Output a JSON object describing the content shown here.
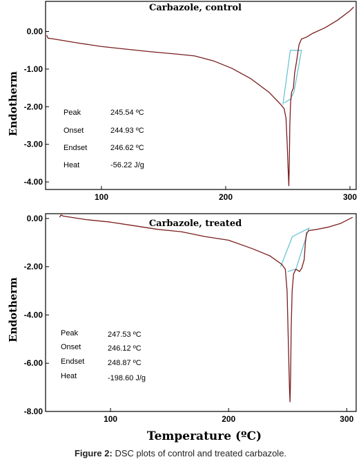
{
  "figure": {
    "xlabel": "Temperature (ºC)",
    "caption_bold": "Figure 2:",
    "caption_rest": " DSC plots of control and treated carbazole."
  },
  "colors": {
    "curve": "#7a1c1c",
    "baseline": "#5fc0d0",
    "axis": "#000000"
  },
  "chart_data": [
    {
      "type": "line",
      "title": "Carbazole, control",
      "ylabel": "Endotherm",
      "xlim": [
        55,
        305
      ],
      "ylim": [
        -4.2,
        0.8
      ],
      "xticks": [
        100,
        200,
        300
      ],
      "xtick_labels": [
        "100",
        "200",
        "300"
      ],
      "yticks": [
        0,
        -1,
        -2,
        -3,
        -4
      ],
      "ytick_labels": [
        "0.00",
        "-1.00",
        "-2.00",
        "-3.00",
        "-4.00"
      ],
      "series": [
        {
          "points": [
            [
              56,
              -0.1
            ],
            [
              57,
              -0.18
            ],
            [
              60,
              -0.19
            ],
            [
              80,
              -0.3
            ],
            [
              100,
              -0.4
            ],
            [
              120,
              -0.47
            ],
            [
              140,
              -0.54
            ],
            [
              160,
              -0.6
            ],
            [
              175,
              -0.65
            ],
            [
              190,
              -0.78
            ],
            [
              205,
              -0.98
            ],
            [
              220,
              -1.25
            ],
            [
              235,
              -1.62
            ],
            [
              244,
              -1.93
            ],
            [
              247,
              -2.05
            ],
            [
              248.5,
              -2.3
            ],
            [
              249.5,
              -3.0
            ],
            [
              250.3,
              -3.7
            ],
            [
              250.8,
              -4.1
            ],
            [
              251.2,
              -3.5
            ],
            [
              251.6,
              -2.5
            ],
            [
              252.2,
              -1.9
            ],
            [
              253,
              -1.62
            ],
            [
              254.5,
              -1.5
            ],
            [
              255.5,
              -1.1
            ],
            [
              257,
              -0.8
            ],
            [
              259,
              -0.35
            ],
            [
              261,
              -0.2
            ],
            [
              265,
              -0.15
            ],
            [
              270,
              -0.05
            ],
            [
              280,
              0.1
            ],
            [
              290,
              0.3
            ],
            [
              300,
              0.55
            ],
            [
              303,
              0.65
            ]
          ]
        }
      ],
      "baseline": [
        [
          246,
          -1.95
        ],
        [
          252,
          -0.5
        ],
        [
          261,
          -0.5
        ],
        [
          255,
          -1.6
        ],
        [
          252,
          -1.8
        ],
        [
          247,
          -1.9
        ]
      ],
      "annotations": [
        {
          "label": "Peak",
          "value": "245.54 ºC"
        },
        {
          "label": "Onset",
          "value": "244.93 ºC"
        },
        {
          "label": "Endset",
          "value": "246.62 ºC"
        },
        {
          "label": "Heat",
          "value": "-56.22 J/g"
        }
      ]
    },
    {
      "type": "line",
      "title": "Carbazole, treated",
      "ylabel": "Endotherm",
      "xlim": [
        45,
        308
      ],
      "ylim": [
        -8.0,
        0.2
      ],
      "xticks": [
        100,
        200,
        300
      ],
      "xtick_labels": [
        "100",
        "200",
        "300"
      ],
      "yticks": [
        0,
        -2,
        -4,
        -6,
        -8
      ],
      "ytick_labels": [
        "0.00",
        "-2.00",
        "-4.00",
        "-6.00",
        "-8.00"
      ],
      "series": [
        {
          "points": [
            [
              57,
              0.05
            ],
            [
              58,
              0.15
            ],
            [
              60,
              0.1
            ],
            [
              80,
              -0.05
            ],
            [
              100,
              -0.15
            ],
            [
              120,
              -0.3
            ],
            [
              140,
              -0.45
            ],
            [
              160,
              -0.55
            ],
            [
              180,
              -0.75
            ],
            [
              200,
              -0.9
            ],
            [
              220,
              -1.25
            ],
            [
              235,
              -1.55
            ],
            [
              245,
              -1.9
            ],
            [
              248,
              -2.1
            ],
            [
              249.5,
              -3.0
            ],
            [
              250.5,
              -5.0
            ],
            [
              251.5,
              -7.0
            ],
            [
              252,
              -7.6
            ],
            [
              252.5,
              -6.5
            ],
            [
              253,
              -4.5
            ],
            [
              253.8,
              -3.0
            ],
            [
              255,
              -2.3
            ],
            [
              257,
              -2.1
            ],
            [
              260,
              -2.2
            ],
            [
              262,
              -2.05
            ],
            [
              264,
              -1.7
            ],
            [
              265,
              -1.0
            ],
            [
              266,
              -0.6
            ],
            [
              268,
              -0.5
            ],
            [
              275,
              -0.45
            ],
            [
              285,
              -0.35
            ],
            [
              295,
              -0.2
            ],
            [
              305,
              0.05
            ]
          ]
        }
      ],
      "baseline": [
        [
          244,
          -2.0
        ],
        [
          254,
          -0.75
        ],
        [
          268,
          -0.4
        ],
        [
          257,
          -2.1
        ],
        [
          250,
          -2.2
        ]
      ],
      "annotations": [
        {
          "label": "Peak",
          "value": "247.53 ºC"
        },
        {
          "label": "Onset",
          "value": "246.12 ºC"
        },
        {
          "label": "Endset",
          "value": "248.87 ºC"
        },
        {
          "label": "Heat",
          "value": "-198.60  J/g"
        }
      ]
    }
  ]
}
